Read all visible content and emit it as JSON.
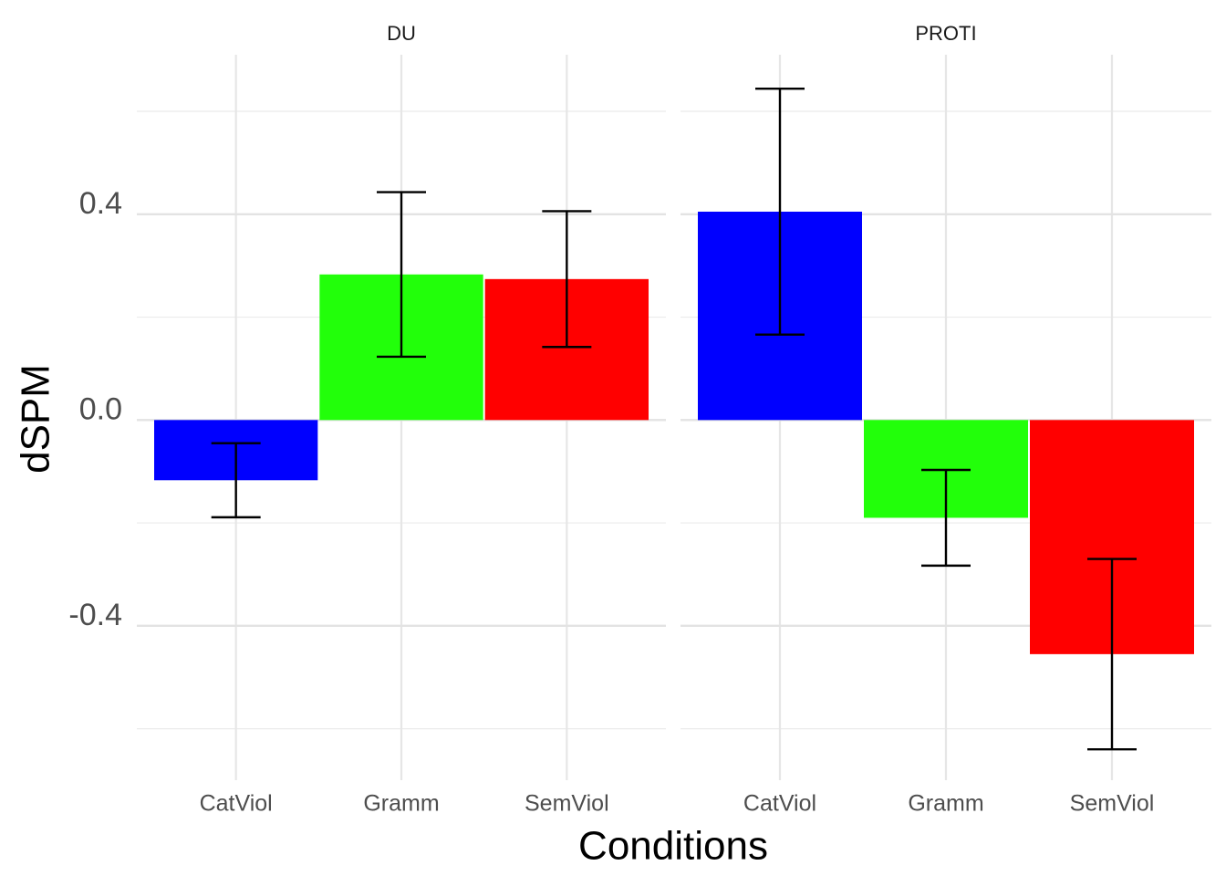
{
  "axes": {
    "xlabel": "Conditions",
    "ylabel": "dSPM"
  },
  "chart_data": [
    {
      "type": "bar",
      "title": "DU",
      "categories": [
        "CatViol",
        "Gramm",
        "SemViol"
      ],
      "values": [
        -0.117,
        0.283,
        0.274
      ],
      "errors": [
        0.072,
        0.16,
        0.132
      ],
      "colors": [
        "#0000ff",
        "#22ff0a",
        "#ff0000"
      ],
      "ylim": [
        -0.7,
        0.71
      ],
      "yticks": [
        -0.4,
        {
          "value": 0,
          "label": "0.0"
        },
        0.4
      ],
      "minor_yticks": [
        -0.6,
        -0.2,
        0.2,
        0.6
      ],
      "grid": true
    },
    {
      "type": "bar",
      "title": "PROTI",
      "categories": [
        "CatViol",
        "Gramm",
        "SemViol"
      ],
      "values": [
        0.405,
        -0.19,
        -0.455
      ],
      "errors": [
        0.239,
        0.093,
        0.185
      ],
      "colors": [
        "#0000ff",
        "#22ff0a",
        "#ff0000"
      ],
      "ylim": [
        -0.7,
        0.71
      ],
      "yticks": [
        -0.4,
        {
          "value": 0,
          "label": "0.0"
        },
        0.4
      ],
      "minor_yticks": [
        -0.6,
        -0.2,
        0.2,
        0.6
      ],
      "grid": true
    }
  ]
}
